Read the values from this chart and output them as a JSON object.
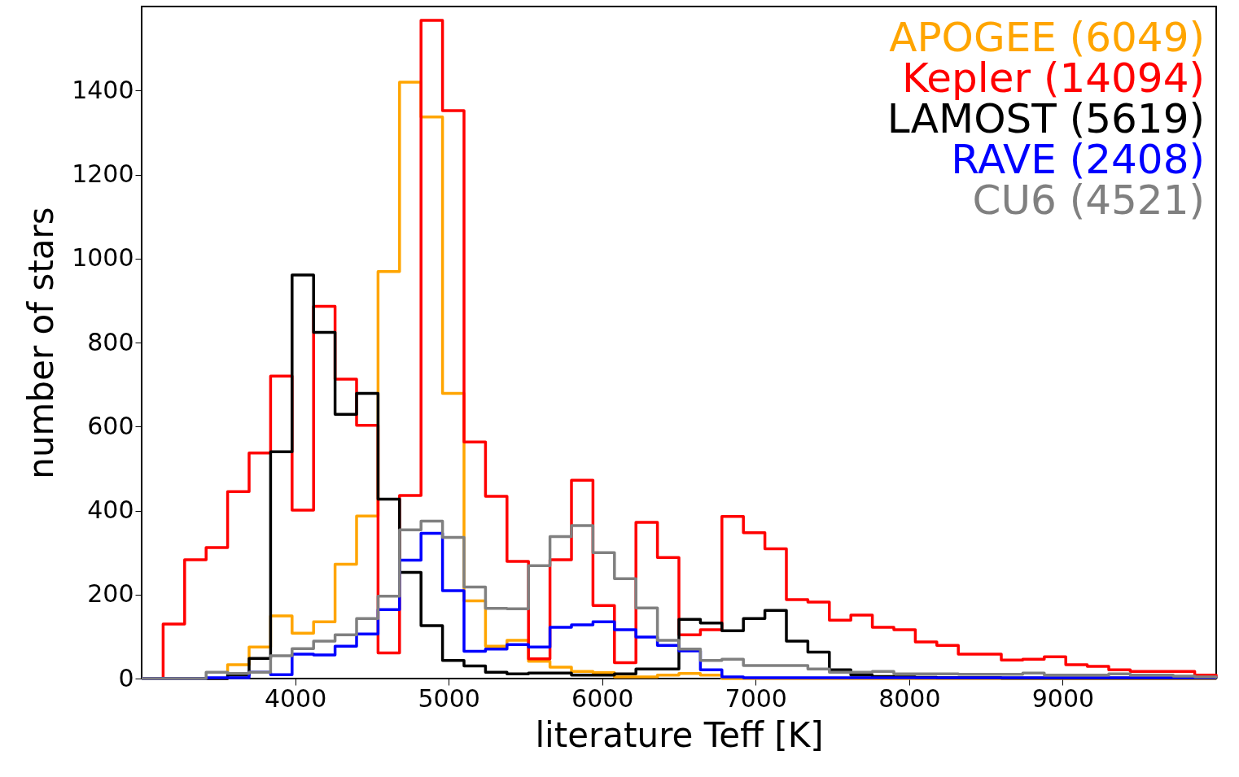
{
  "chart_data": {
    "type": "histogram",
    "xlabel": "literature Teff [K]",
    "ylabel": "number of stars",
    "bins": [
      3000,
      3140,
      3280,
      3420,
      3560,
      3700,
      3840,
      3980,
      4120,
      4260,
      4400,
      4540,
      4680,
      4820,
      4960,
      5100,
      5240,
      5380,
      5520,
      5660,
      5800,
      5940,
      6080,
      6220,
      6360,
      6500,
      6640,
      6780,
      6920,
      7060,
      7200,
      7340,
      7480,
      7620,
      7760,
      7900,
      8040,
      8180,
      8320,
      8460,
      8600,
      8740,
      8880,
      9020,
      9160,
      9300,
      9440,
      9580,
      9720,
      9860,
      10000
    ],
    "series": [
      {
        "name": "APOGEE (6049)",
        "color": "#ffa500",
        "values": [
          0,
          0,
          0,
          0,
          33,
          75,
          149,
          108,
          135,
          272,
          387,
          969,
          1420,
          1337,
          679,
          185,
          77,
          91,
          41,
          27,
          17,
          14,
          4,
          4,
          8,
          12,
          8,
          0,
          0,
          0,
          0,
          0,
          0,
          0,
          0,
          0,
          0,
          0,
          0,
          0,
          0,
          0,
          0,
          0,
          0,
          0,
          0,
          0,
          0,
          0
        ]
      },
      {
        "name": "Kepler (14094)",
        "color": "#ff0000",
        "values": [
          0,
          130,
          283,
          312,
          445,
          537,
          720,
          401,
          886,
          713,
          603,
          61,
          436,
          1567,
          1352,
          563,
          434,
          279,
          47,
          283,
          472,
          174,
          38,
          372,
          288,
          104,
          116,
          386,
          347,
          309,
          188,
          182,
          139,
          151,
          122,
          116,
          87,
          79,
          58,
          58,
          44,
          46,
          52,
          33,
          29,
          21,
          17,
          17,
          17,
          8
        ]
      },
      {
        "name": "LAMOST (5619)",
        "color": "#000000",
        "values": [
          0,
          0,
          0,
          0,
          8,
          48,
          540,
          961,
          824,
          629,
          679,
          427,
          253,
          126,
          43,
          30,
          15,
          11,
          13,
          13,
          8,
          8,
          11,
          23,
          23,
          141,
          132,
          114,
          143,
          162,
          89,
          63,
          21,
          8,
          5,
          4,
          3,
          2,
          2,
          2,
          1,
          1,
          1,
          1,
          1,
          1,
          1,
          1,
          1,
          1
        ]
      },
      {
        "name": "RAVE (2408)",
        "color": "#0000ff",
        "values": [
          0,
          0,
          0,
          2,
          2,
          15,
          9,
          58,
          56,
          77,
          106,
          164,
          282,
          346,
          209,
          65,
          70,
          81,
          75,
          122,
          128,
          135,
          116,
          99,
          79,
          66,
          21,
          4,
          2,
          2,
          2,
          2,
          2,
          2,
          2,
          2,
          2,
          2,
          2,
          2,
          2,
          2,
          2,
          2,
          2,
          2,
          2,
          2,
          2,
          2
        ]
      },
      {
        "name": "CU6 (4521)",
        "color": "#808080",
        "values": [
          0,
          0,
          0,
          15,
          12,
          15,
          54,
          71,
          89,
          104,
          143,
          196,
          354,
          375,
          336,
          218,
          167,
          166,
          269,
          338,
          364,
          300,
          238,
          168,
          91,
          70,
          43,
          46,
          31,
          31,
          31,
          23,
          15,
          15,
          17,
          11,
          11,
          11,
          10,
          10,
          10,
          13,
          8,
          8,
          8,
          11,
          8,
          8,
          6,
          4
        ]
      }
    ],
    "xlim": [
      3000,
      10000
    ],
    "ylim": [
      0,
      1600
    ],
    "xticks": [
      4000,
      5000,
      6000,
      7000,
      8000,
      9000
    ],
    "yticks": [
      0,
      200,
      400,
      600,
      800,
      1000,
      1200,
      1400
    ],
    "legend": "top right",
    "grid": false
  }
}
